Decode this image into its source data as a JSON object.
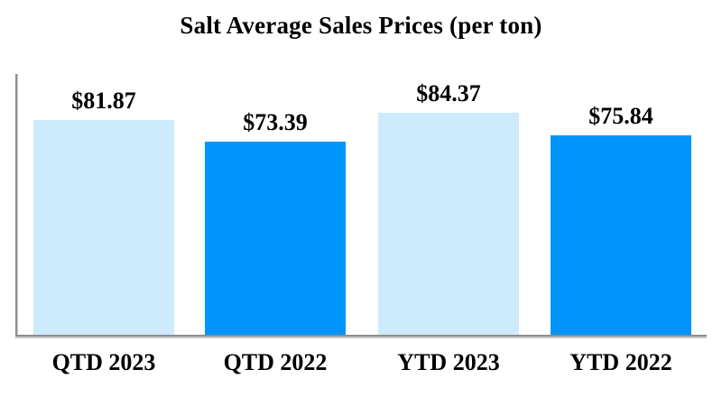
{
  "chart_data": {
    "type": "bar",
    "title": "Salt Average Sales Prices (per ton)",
    "categories": [
      "QTD 2023",
      "QTD 2022",
      "YTD 2023",
      "YTD 2022"
    ],
    "values": [
      81.87,
      73.39,
      84.37,
      75.84
    ],
    "value_labels": [
      "$81.87",
      "$73.39",
      "$84.37",
      "$75.84"
    ],
    "bar_colors": [
      "#CDEBFC",
      "#0095FA",
      "#CDEBFC",
      "#0095FA"
    ],
    "xlabel": "",
    "ylabel": "",
    "ylim": [
      0,
      100
    ],
    "grid": false,
    "legend": false,
    "axis_color": "#8F8F8F",
    "text_color": "#000000",
    "background_color": "#FFFFFF"
  }
}
